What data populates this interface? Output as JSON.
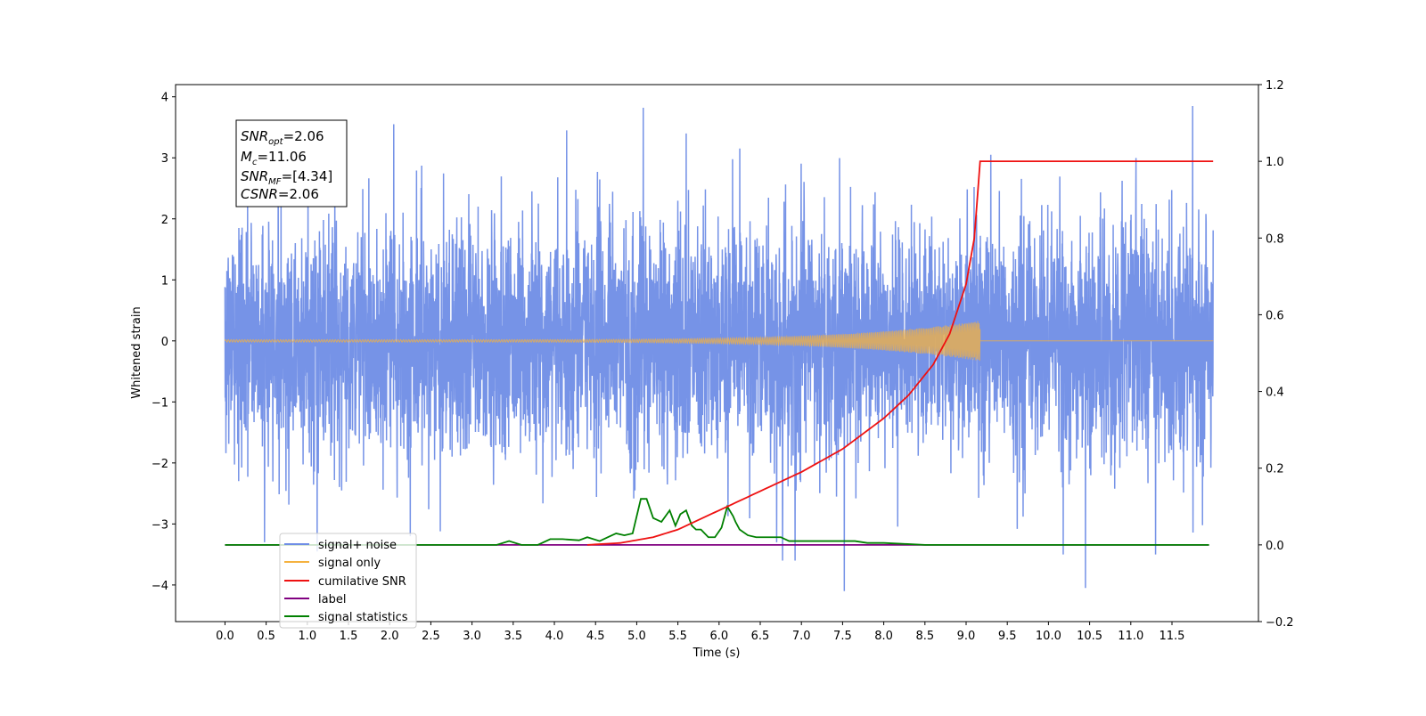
{
  "chart_data": {
    "type": "line",
    "xlabel": "Time (s)",
    "ylabel": "Whitened strain",
    "xlim": [
      -0.6,
      12.55
    ],
    "ylim": [
      -4.6,
      4.2
    ],
    "y2lim": [
      -0.2,
      1.2
    ],
    "x_ticks": [
      0.0,
      0.5,
      1.0,
      1.5,
      2.0,
      2.5,
      3.0,
      3.5,
      4.0,
      4.5,
      5.0,
      5.5,
      6.0,
      6.5,
      7.0,
      7.5,
      8.0,
      8.5,
      9.0,
      9.5,
      10.0,
      10.5,
      11.0,
      11.5
    ],
    "x_tick_labels": [
      "0.0",
      "0.5",
      "1.0",
      "1.5",
      "2.0",
      "2.5",
      "3.0",
      "3.5",
      "4.0",
      "4.5",
      "5.0",
      "5.5",
      "6.0",
      "6.5",
      "7.0",
      "7.5",
      "8.0",
      "8.5",
      "9.0",
      "9.5",
      "10.0",
      "10.5",
      "11.0",
      "11.5"
    ],
    "y_ticks": [
      4,
      3,
      2,
      1,
      0,
      -1,
      -2,
      -3,
      -4
    ],
    "y_tick_labels": [
      "4",
      "3",
      "2",
      "1",
      "0",
      "−1",
      "−2",
      "−3",
      "−4"
    ],
    "y2_ticks": [
      1.2,
      1.0,
      0.8,
      0.6,
      0.4,
      0.2,
      0.0,
      -0.2
    ],
    "y2_tick_labels": [
      "1.2",
      "1.0",
      "0.8",
      "0.6",
      "0.4",
      "0.2",
      "0.0",
      "−0.2"
    ],
    "grid": false,
    "legend_position": "lower-left",
    "series": [
      {
        "name": "signal+ noise",
        "color": "#6f8de6",
        "axis": "left",
        "x_range": [
          0.0,
          12.0
        ],
        "noise_sigma": 0.95,
        "notable_spikes": [
          {
            "x": 0.48,
            "y": -3.3
          },
          {
            "x": 1.12,
            "y": -3.45
          },
          {
            "x": 2.05,
            "y": 3.55
          },
          {
            "x": 2.25,
            "y": -3.2
          },
          {
            "x": 4.15,
            "y": 3.45
          },
          {
            "x": 5.08,
            "y": 3.82
          },
          {
            "x": 5.6,
            "y": 3.4
          },
          {
            "x": 6.7,
            "y": -3.3
          },
          {
            "x": 7.52,
            "y": -4.1
          },
          {
            "x": 10.18,
            "y": -3.5
          },
          {
            "x": 10.45,
            "y": -4.05
          },
          {
            "x": 11.3,
            "y": -3.5
          },
          {
            "x": 11.75,
            "y": 3.85
          },
          {
            "x": 9.3,
            "y": 3.05
          }
        ]
      },
      {
        "name": "signal only",
        "color": "#f5b23f",
        "axis": "left",
        "chirp_start": 0.0,
        "chirp_end": 9.17,
        "amplitude_start": 0.02,
        "amplitude_end": 0.33
      },
      {
        "name": "cumilative SNR",
        "color": "#ee1111",
        "axis": "right",
        "x": [
          4.4,
          4.8,
          5.2,
          5.5,
          5.8,
          6.1,
          6.5,
          7.0,
          7.5,
          8.0,
          8.3,
          8.6,
          8.8,
          9.0,
          9.1,
          9.17,
          9.5,
          10.0,
          10.5,
          11.0,
          11.5,
          12.0
        ],
        "y": [
          0.0,
          0.005,
          0.02,
          0.04,
          0.07,
          0.1,
          0.14,
          0.19,
          0.25,
          0.33,
          0.39,
          0.47,
          0.55,
          0.68,
          0.8,
          1.0,
          1.0,
          1.0,
          1.0,
          1.0,
          1.0,
          1.0
        ]
      },
      {
        "name": "label",
        "color": "#800080",
        "axis": "right",
        "x": [
          0.0,
          11.95
        ],
        "y": [
          0.0,
          0.0
        ]
      },
      {
        "name": "signal statistics",
        "color": "#008000",
        "axis": "right",
        "x": [
          0.0,
          3.3,
          3.45,
          3.6,
          3.8,
          3.95,
          4.1,
          4.3,
          4.4,
          4.55,
          4.65,
          4.75,
          4.85,
          4.95,
          5.05,
          5.12,
          5.2,
          5.3,
          5.4,
          5.47,
          5.53,
          5.6,
          5.67,
          5.72,
          5.78,
          5.87,
          5.95,
          6.03,
          6.1,
          6.17,
          6.2,
          6.25,
          6.35,
          6.45,
          6.55,
          6.65,
          6.75,
          6.85,
          6.95,
          7.05,
          7.2,
          7.35,
          7.5,
          7.65,
          7.8,
          8.0,
          8.2,
          8.5,
          9.0,
          11.95
        ],
        "y": [
          0.0,
          0.0,
          0.01,
          0.0,
          0.0,
          0.015,
          0.015,
          0.012,
          0.02,
          0.01,
          0.02,
          0.03,
          0.025,
          0.03,
          0.12,
          0.12,
          0.07,
          0.06,
          0.09,
          0.05,
          0.08,
          0.09,
          0.05,
          0.04,
          0.04,
          0.02,
          0.02,
          0.045,
          0.1,
          0.075,
          0.06,
          0.04,
          0.025,
          0.02,
          0.02,
          0.02,
          0.02,
          0.01,
          0.01,
          0.01,
          0.01,
          0.01,
          0.01,
          0.01,
          0.005,
          0.005,
          0.003,
          0.0,
          0.0,
          0.0
        ]
      }
    ]
  },
  "annotation": {
    "snr_opt_main": "SNR",
    "snr_opt_sub": "opt",
    "snr_opt_value": "=2.06",
    "mc_main": "M",
    "mc_sub": "c",
    "mc_value": "=11.06",
    "snr_mf_main": "SNR",
    "snr_mf_sub": "MF",
    "snr_mf_value": "=[4.34]",
    "csnr_main": "CSNR",
    "csnr_value": "=2.06"
  },
  "legend": [
    {
      "label": "signal+ noise",
      "color": "#6f8de6"
    },
    {
      "label": "signal only",
      "color": "#f5b23f"
    },
    {
      "label": "cumilative SNR",
      "color": "#ee1111"
    },
    {
      "label": "label",
      "color": "#800080"
    },
    {
      "label": "signal statistics",
      "color": "#008000"
    }
  ]
}
